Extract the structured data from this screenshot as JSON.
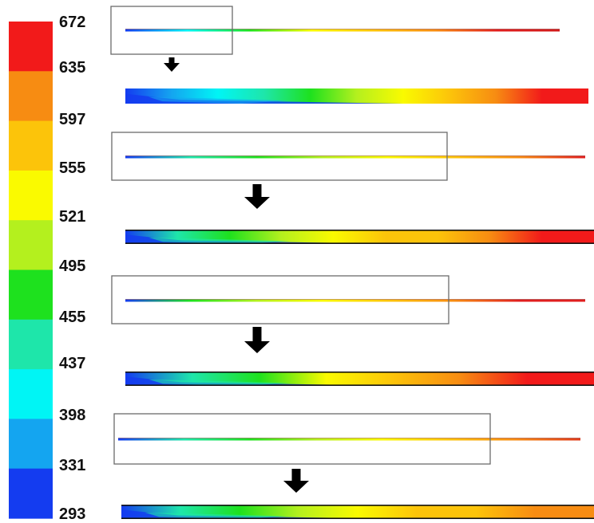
{
  "legend": {
    "labels": [
      "672",
      "635",
      "597",
      "555",
      "521",
      "495",
      "455",
      "437",
      "398",
      "331",
      "293"
    ],
    "bands": [
      "#f21a1a",
      "#f78c12",
      "#fcc40a",
      "#fafa00",
      "#b4f01e",
      "#1ee11e",
      "#1ee6aa",
      "#00f5f5",
      "#14a5f0",
      "#143cf0"
    ]
  },
  "panels": [
    {
      "overview_ramp": [
        "#143cf0",
        "#00f5f5",
        "#1ee11e",
        "#fafa00",
        "#fcc40a",
        "#f78c12",
        "#e01e1e",
        "#d01a1a"
      ],
      "zoom_ramp": [
        "#143cf0",
        "#14a5f0",
        "#00f5f5",
        "#1ee6aa",
        "#1ee11e",
        "#b4f01e",
        "#fafa00",
        "#fcc40a",
        "#f78c12",
        "#f21a1a",
        "#f21a1a"
      ]
    },
    {
      "overview_ramp": [
        "#143cf0",
        "#1ee6aa",
        "#1ee11e",
        "#b4f01e",
        "#fafa00",
        "#fcc40a",
        "#f78c12",
        "#e01e1e"
      ],
      "zoom_ramp": [
        "#143cf0",
        "#1ee6aa",
        "#1ee11e",
        "#b4f01e",
        "#fafa00",
        "#fcc40a",
        "#fcc40a",
        "#f78c12",
        "#f21a1a",
        "#f21a1a"
      ]
    },
    {
      "overview_ramp": [
        "#143cf0",
        "#1ee11e",
        "#b4f01e",
        "#fafa00",
        "#fcc40a",
        "#f78c12",
        "#e01e1e",
        "#e01e1e"
      ],
      "zoom_ramp": [
        "#143cf0",
        "#1ee6aa",
        "#1ee11e",
        "#fafa00",
        "#fcc40a",
        "#f78c12",
        "#f21a1a",
        "#f21a1a"
      ]
    },
    {
      "overview_ramp": [
        "#143cf0",
        "#1ee6aa",
        "#1ee11e",
        "#b4f01e",
        "#fafa00",
        "#fcc40a",
        "#f78c12",
        "#e03a1a"
      ],
      "zoom_ramp": [
        "#143cf0",
        "#1ee6aa",
        "#1ee11e",
        "#b4f01e",
        "#fafa00",
        "#fcc40a",
        "#fcc40a",
        "#f78c12",
        "#f78c12"
      ]
    }
  ]
}
